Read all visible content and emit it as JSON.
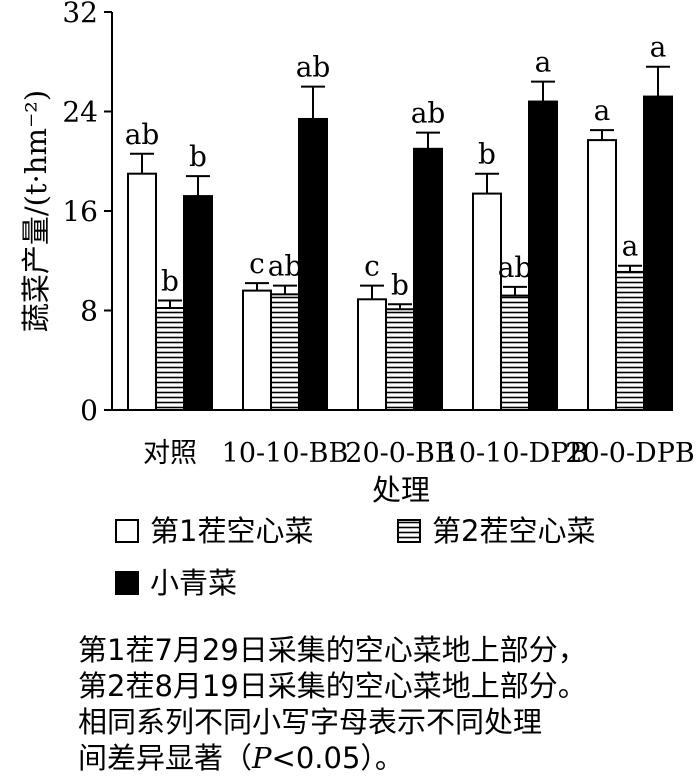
{
  "chart_data": {
    "type": "bar",
    "categories": [
      "对照",
      "10-10-BB",
      "20-0-BB",
      "10-10-DPB",
      "20-0-DPB"
    ],
    "series": [
      {
        "name": "第1茬空心菜",
        "values": [
          19.0,
          9.6,
          8.9,
          17.4,
          21.7
        ],
        "errors": [
          1.6,
          0.6,
          1.1,
          1.6,
          0.8
        ],
        "letters": [
          "ab",
          "c",
          "c",
          "b",
          "a"
        ]
      },
      {
        "name": "第2茬空心菜",
        "values": [
          8.2,
          9.3,
          8.1,
          9.2,
          11.1
        ],
        "errors": [
          0.6,
          0.7,
          0.4,
          0.7,
          0.5
        ],
        "letters": [
          "b",
          "ab",
          "b",
          "ab",
          "a"
        ]
      },
      {
        "name": "小青菜",
        "values": [
          17.2,
          23.4,
          21.0,
          24.8,
          25.2
        ],
        "errors": [
          1.6,
          2.6,
          1.3,
          1.6,
          2.4
        ],
        "letters": [
          "b",
          "ab",
          "ab",
          "a",
          "a"
        ]
      }
    ],
    "xlabel": "处理",
    "ylabel": "蔬菜产量/(t·hm⁻²)",
    "ylim": [
      0,
      32
    ],
    "yticks": [
      0,
      8,
      16,
      24,
      32
    ],
    "grid": false,
    "legend_position": "bottom"
  },
  "caption": {
    "line1": "第1茬7月29日采集的空心菜地上部分，",
    "line2": "第2茬8月19日采集的空心菜地上部分。",
    "line3": "相同系列不同小写字母表示不同处理",
    "line4_prefix": "间差异显著（",
    "line4_p": "P",
    "line4_suffix": "<0.05）。"
  },
  "colors": {
    "series1": "#ffffff",
    "series2": "hatch-horizontal",
    "series3": "#000000",
    "axis": "#000000"
  }
}
